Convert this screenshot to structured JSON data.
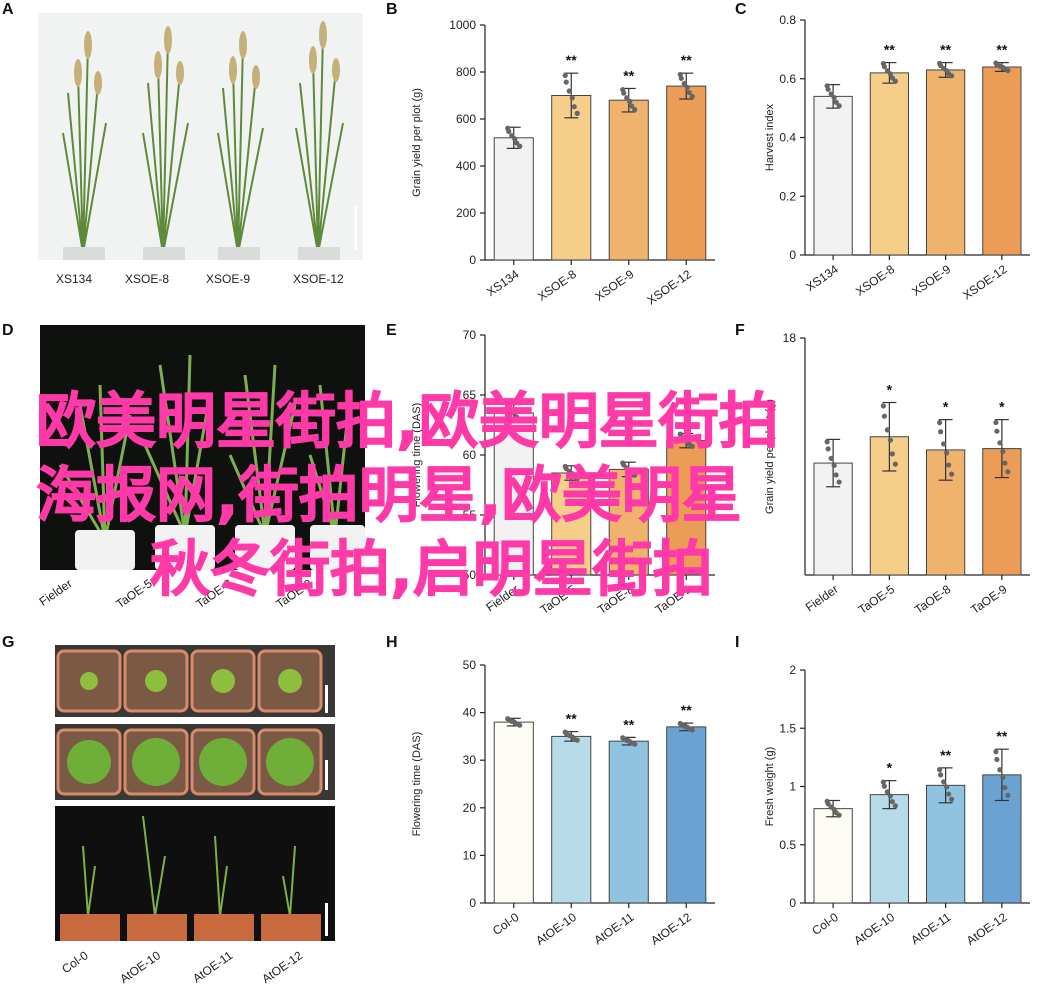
{
  "panels": {
    "A": "A",
    "B": "B",
    "C": "C",
    "D": "D",
    "E": "E",
    "F": "F",
    "G": "G",
    "H": "H",
    "I": "I"
  },
  "photo_labels": {
    "A": [
      "XS134",
      "XSOE-8",
      "XSOE-9",
      "XSOE-12"
    ],
    "D": [
      "Fielder",
      "TaOE-5",
      "TaOE-8",
      "TaOE-9"
    ],
    "G": [
      "Col-0",
      "AtOE-10",
      "AtOE-11",
      "AtOE-12"
    ]
  },
  "overlay_text": {
    "line1": "欧美明星街拍,欧美明星街拍",
    "line2": "海报网,街拍明星,欧美明星",
    "line3": "秋冬街拍,启明星街拍"
  },
  "colors": {
    "overlay": "#ff3aa8",
    "bar_white": "#f2f2f2",
    "bar_yellow": "#f5cf8a",
    "bar_orange": "#efb36e",
    "bar_darkorange": "#eb9c57",
    "bar_lightblue": "#b8dbea",
    "bar_blue": "#8fc3df",
    "bar_darkblue": "#6aa3d2",
    "bar_offwhite": "#fdfcf5"
  },
  "chart_data": [
    {
      "id": "B",
      "type": "bar",
      "categories": [
        "XS134",
        "XSOE-8",
        "XSOE-9",
        "XSOE-12"
      ],
      "values": [
        520,
        700,
        680,
        740
      ],
      "errors": [
        45,
        95,
        50,
        55
      ],
      "significance": [
        "",
        "**",
        "**",
        "**"
      ],
      "ylabel": "Grain yield per plot (g)",
      "ylim": [
        0,
        1000
      ],
      "yticks": [
        0,
        200,
        400,
        600,
        800,
        1000
      ],
      "colors": [
        "bar_white",
        "bar_yellow",
        "bar_orange",
        "bar_darkorange"
      ]
    },
    {
      "id": "C",
      "type": "bar",
      "categories": [
        "XS134",
        "XSOE-8",
        "XSOE-9",
        "XSOE-12"
      ],
      "values": [
        0.54,
        0.62,
        0.63,
        0.64
      ],
      "errors": [
        0.04,
        0.035,
        0.025,
        0.015
      ],
      "significance": [
        "",
        "**",
        "**",
        "**"
      ],
      "ylabel": "Harvest index",
      "ylim": [
        0,
        0.8
      ],
      "yticks": [
        0.0,
        0.2,
        0.4,
        0.6,
        0.8
      ],
      "colors": [
        "bar_white",
        "bar_yellow",
        "bar_orange",
        "bar_darkorange"
      ]
    },
    {
      "id": "E",
      "type": "bar",
      "categories": [
        "Fielder",
        "TaOE-5",
        "TaOE-8",
        "TaOE-9"
      ],
      "values": [
        63.5,
        58.5,
        58.8,
        61.2
      ],
      "errors": [
        0.7,
        0.6,
        0.6,
        0.6
      ],
      "significance": [
        "",
        "",
        "",
        ""
      ],
      "ylabel": "Flowering time (DAS)",
      "ylim": [
        50,
        70
      ],
      "yticks": [
        50,
        55,
        60,
        65,
        70
      ],
      "colors": [
        "bar_white",
        "bar_yellow",
        "bar_orange",
        "bar_darkorange"
      ]
    },
    {
      "id": "F",
      "type": "bar",
      "categories": [
        "Fielder",
        "TaOE-5",
        "TaOE-8",
        "TaOE-9"
      ],
      "values": [
        8.5,
        10.5,
        9.5,
        9.6
      ],
      "errors": [
        1.8,
        2.6,
        2.3,
        2.2
      ],
      "significance": [
        "",
        "*",
        "*",
        "*"
      ],
      "ylabel": "Grain yield per plant (g)",
      "ylim": [
        0,
        18
      ],
      "yticks": [
        18
      ],
      "colors": [
        "bar_white",
        "bar_yellow",
        "bar_orange",
        "bar_darkorange"
      ]
    },
    {
      "id": "H",
      "type": "bar",
      "categories": [
        "Col-0",
        "AtOE-10",
        "AtOE-11",
        "AtOE-12"
      ],
      "values": [
        38,
        35,
        34,
        37
      ],
      "errors": [
        0.8,
        1,
        0.8,
        0.8
      ],
      "significance": [
        "",
        "**",
        "**",
        "**"
      ],
      "ylabel": "Flowering time (DAS)",
      "ylim": [
        0,
        50
      ],
      "yticks": [
        0,
        10,
        20,
        30,
        40,
        50
      ],
      "colors": [
        "bar_offwhite",
        "bar_lightblue",
        "bar_blue",
        "bar_darkblue"
      ]
    },
    {
      "id": "I",
      "type": "bar",
      "categories": [
        "Col-0",
        "AtOE-10",
        "AtOE-11",
        "AtOE-12"
      ],
      "values": [
        0.81,
        0.93,
        1.01,
        1.1
      ],
      "errors": [
        0.07,
        0.12,
        0.15,
        0.22
      ],
      "significance": [
        "",
        "*",
        "**",
        "**"
      ],
      "ylabel": "Fresh weight (g)",
      "ylim": [
        0,
        2.0
      ],
      "yticks": [
        0.0,
        0.5,
        1.0,
        1.5,
        2.0
      ],
      "colors": [
        "bar_offwhite",
        "bar_lightblue",
        "bar_blue",
        "bar_darkblue"
      ]
    }
  ]
}
